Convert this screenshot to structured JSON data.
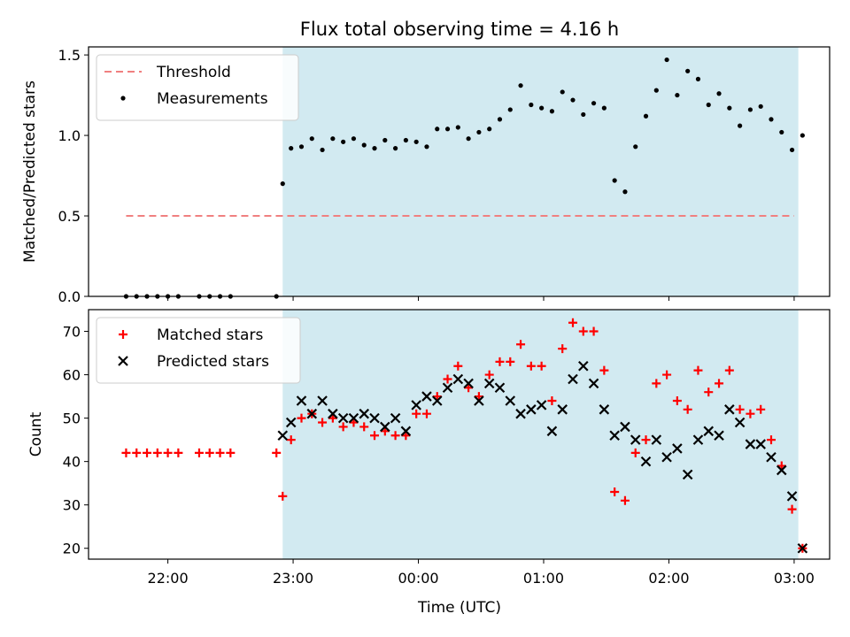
{
  "chart_data": {
    "title": "Flux total observing time = 4.16 h",
    "xlabel": "Time (UTC)",
    "x_unit": "UTC clock time (HH:MM)",
    "x_ticks": [
      "22:00",
      "23:00",
      "00:00",
      "01:00",
      "02:00",
      "03:00"
    ],
    "x_range": [
      "21:22",
      "03:17"
    ],
    "shaded_interval": [
      "22:55",
      "03:02"
    ],
    "shade_color": "#add8e6",
    "panels": [
      {
        "type": "scatter",
        "ylabel": "Matched/Predicted stars",
        "ylim": [
          0,
          1.55
        ],
        "yticks": [
          "0.0",
          "0.5",
          "1.0",
          "1.5"
        ],
        "legend_position": "upper-left",
        "threshold": {
          "name": "Threshold",
          "value": 0.5,
          "x_start": "21:40",
          "x_end": "03:00",
          "color": "#f08080",
          "style": "dashed"
        },
        "series": [
          {
            "name": "Measurements",
            "color": "#000000",
            "marker": "dot",
            "x": [
              "21:40",
              "21:45",
              "21:50",
              "21:55",
              "22:00",
              "22:05",
              "22:15",
              "22:20",
              "22:25",
              "22:30",
              "22:52",
              "22:55",
              "22:59",
              "23:04",
              "23:09",
              "23:14",
              "23:19",
              "23:24",
              "23:29",
              "23:34",
              "23:39",
              "23:44",
              "23:49",
              "23:54",
              "23:59",
              "00:04",
              "00:09",
              "00:14",
              "00:19",
              "00:24",
              "00:29",
              "00:34",
              "00:39",
              "00:44",
              "00:49",
              "00:54",
              "00:59",
              "01:04",
              "01:09",
              "01:14",
              "01:19",
              "01:24",
              "01:29",
              "01:34",
              "01:39",
              "01:44",
              "01:49",
              "01:54",
              "01:59",
              "02:04",
              "02:09",
              "02:14",
              "02:19",
              "02:24",
              "02:29",
              "02:34",
              "02:39",
              "02:44",
              "02:49",
              "02:54",
              "02:59",
              "03:04"
            ],
            "y": [
              0,
              0,
              0,
              0,
              0,
              0,
              0,
              0,
              0,
              0,
              0,
              0.7,
              0.92,
              0.93,
              0.98,
              0.91,
              0.98,
              0.96,
              0.98,
              0.94,
              0.92,
              0.97,
              0.92,
              0.97,
              0.96,
              0.93,
              1.04,
              1.04,
              1.05,
              0.98,
              1.02,
              1.04,
              1.1,
              1.16,
              1.31,
              1.19,
              1.17,
              1.15,
              1.27,
              1.22,
              1.13,
              1.2,
              1.17,
              0.72,
              0.65,
              0.93,
              1.12,
              1.28,
              1.47,
              1.25,
              1.4,
              1.35,
              1.19,
              1.26,
              1.17,
              1.06,
              1.16,
              1.18,
              1.1,
              1.02,
              0.91,
              1.0
            ]
          }
        ]
      },
      {
        "type": "scatter",
        "ylabel": "Count",
        "ylim": [
          17.5,
          75
        ],
        "yticks": [
          "20",
          "30",
          "40",
          "50",
          "60",
          "70"
        ],
        "legend_position": "upper-left",
        "series": [
          {
            "name": "Matched stars",
            "color": "#ff0000",
            "marker": "plus",
            "x": [
              "21:40",
              "21:45",
              "21:50",
              "21:55",
              "22:00",
              "22:05",
              "22:15",
              "22:20",
              "22:25",
              "22:30",
              "22:52",
              "22:55",
              "22:59",
              "23:04",
              "23:09",
              "23:14",
              "23:19",
              "23:24",
              "23:29",
              "23:34",
              "23:39",
              "23:44",
              "23:49",
              "23:54",
              "23:59",
              "00:04",
              "00:09",
              "00:14",
              "00:19",
              "00:24",
              "00:29",
              "00:34",
              "00:39",
              "00:44",
              "00:49",
              "00:54",
              "00:59",
              "01:04",
              "01:09",
              "01:14",
              "01:19",
              "01:24",
              "01:29",
              "01:34",
              "01:39",
              "01:44",
              "01:49",
              "01:54",
              "01:59",
              "02:04",
              "02:09",
              "02:14",
              "02:19",
              "02:24",
              "02:29",
              "02:34",
              "02:39",
              "02:44",
              "02:49",
              "02:54",
              "02:59",
              "03:04"
            ],
            "y": [
              42,
              42,
              42,
              42,
              42,
              42,
              42,
              42,
              42,
              42,
              42,
              32,
              45,
              50,
              51,
              49,
              50,
              48,
              49,
              48,
              46,
              47,
              46,
              46,
              51,
              51,
              55,
              59,
              62,
              57,
              55,
              60,
              63,
              63,
              67,
              62,
              62,
              54,
              66,
              72,
              70,
              70,
              61,
              33,
              31,
              42,
              45,
              58,
              60,
              54,
              52,
              61,
              56,
              58,
              61,
              52,
              51,
              52,
              45,
              39,
              29,
              20
            ]
          },
          {
            "name": "Predicted stars",
            "color": "#000000",
            "marker": "cross",
            "x": [
              "22:55",
              "22:59",
              "23:04",
              "23:09",
              "23:14",
              "23:19",
              "23:24",
              "23:29",
              "23:34",
              "23:39",
              "23:44",
              "23:49",
              "23:54",
              "23:59",
              "00:04",
              "00:09",
              "00:14",
              "00:19",
              "00:24",
              "00:29",
              "00:34",
              "00:39",
              "00:44",
              "00:49",
              "00:54",
              "00:59",
              "01:04",
              "01:09",
              "01:14",
              "01:19",
              "01:24",
              "01:29",
              "01:34",
              "01:39",
              "01:44",
              "01:49",
              "01:54",
              "01:59",
              "02:04",
              "02:09",
              "02:14",
              "02:19",
              "02:24",
              "02:29",
              "02:34",
              "02:39",
              "02:44",
              "02:49",
              "02:54",
              "02:59",
              "03:04"
            ],
            "y": [
              46,
              49,
              54,
              51,
              54,
              51,
              50,
              50,
              51,
              50,
              48,
              50,
              47,
              53,
              55,
              54,
              57,
              59,
              58,
              54,
              58,
              57,
              54,
              51,
              52,
              53,
              47,
              52,
              59,
              62,
              58,
              52,
              46,
              48,
              45,
              40,
              45,
              41,
              43,
              37,
              45,
              47,
              46,
              52,
              49,
              44,
              44,
              41,
              38,
              32,
              20
            ]
          }
        ]
      }
    ]
  }
}
